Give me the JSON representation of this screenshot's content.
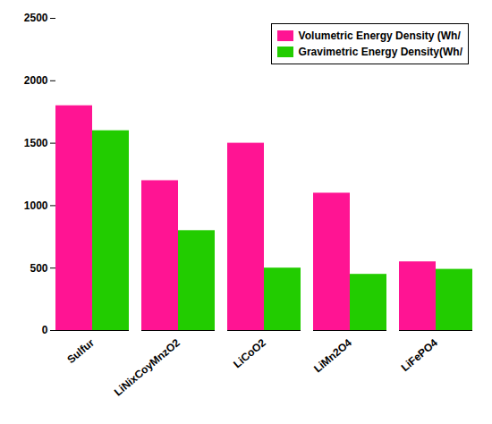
{
  "chart_data": {
    "type": "bar",
    "categories": [
      "Sulfur",
      "LiNixCoyMnzO2",
      "LiCoO2",
      "LiMn2O4",
      "LiFePO4"
    ],
    "series": [
      {
        "name": "Volumetric Energy Density (Wh/",
        "color": "#FF1493",
        "values": [
          1800,
          1200,
          1500,
          1100,
          550
        ]
      },
      {
        "name": "Gravimetric Energy Density(Wh/",
        "color": "#22CC00",
        "values": [
          1600,
          800,
          500,
          450,
          490
        ]
      }
    ],
    "ylim": [
      0,
      2500
    ],
    "yticks": [
      0,
      500,
      1000,
      1500,
      2000,
      2500
    ],
    "legend": "upper right"
  }
}
